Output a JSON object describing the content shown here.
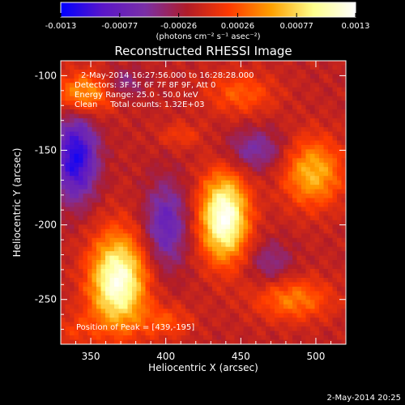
{
  "chart_data": {
    "type": "heatmap",
    "title": "Reconstructed RHESSI Image",
    "xlabel": "Heliocentric X (arcsec)",
    "ylabel": "Heliocentric Y (arcsec)",
    "xlim": [
      330,
      520
    ],
    "ylim": [
      -280,
      -90
    ],
    "x_ticks": [
      350,
      400,
      450,
      500
    ],
    "y_ticks": [
      -100,
      -150,
      -200,
      -250
    ],
    "colorbar": {
      "min": -0.0013,
      "max": 0.0013,
      "ticks": [
        "-0.0013",
        "-0.00077",
        "-0.00026",
        "0.00026",
        "0.00077",
        "0.0013"
      ],
      "unit_label": "(photons cm⁻² s⁻¹ asec⁻²)",
      "colormap": [
        "#0000ff",
        "#5a16c8",
        "#7a2fa6",
        "#b01c28",
        "#ff3a00",
        "#ffa000",
        "#ffff8c",
        "#ffffff"
      ]
    },
    "annotations": [
      "2-May-2014 16:27:56.000 to 16:28:28.000",
      "Detectors: 3F 5F 6F 7F 8F 9F, Att 0",
      "Energy Range: 25.0 - 50.0 keV",
      "Clean     Total counts: 1.32E+03",
      "Position of Peak = [439,-195]"
    ],
    "peak": [
      439,
      -195
    ],
    "sources": [
      {
        "x": 368,
        "y": -238,
        "sx": 13,
        "sy": 22,
        "amp": 1.15
      },
      {
        "x": 439,
        "y": -195,
        "sx": 11,
        "sy": 20,
        "amp": 1.2
      },
      {
        "x": 345,
        "y": -112,
        "sx": 13,
        "sy": 10,
        "amp": 0.6
      },
      {
        "x": 498,
        "y": -165,
        "sx": 14,
        "sy": 16,
        "amp": 0.65
      },
      {
        "x": 485,
        "y": -250,
        "sx": 18,
        "sy": 10,
        "amp": 0.45
      },
      {
        "x": 450,
        "y": -112,
        "sx": 16,
        "sy": 10,
        "amp": 0.35
      },
      {
        "x": 410,
        "y": -140,
        "sx": 10,
        "sy": 6,
        "amp": 0.22
      },
      {
        "x": 400,
        "y": -265,
        "sx": 12,
        "sy": 8,
        "amp": 0.3
      },
      {
        "x": 340,
        "y": -270,
        "sx": 10,
        "sy": 8,
        "amp": 0.2
      }
    ],
    "negatives": [
      {
        "x": 340,
        "y": -155,
        "sx": 10,
        "sy": 20,
        "amp": 0.9
      },
      {
        "x": 400,
        "y": -200,
        "sx": 10,
        "sy": 20,
        "amp": 0.55
      },
      {
        "x": 460,
        "y": -150,
        "sx": 14,
        "sy": 10,
        "amp": 0.4
      },
      {
        "x": 470,
        "y": -225,
        "sx": 10,
        "sy": 10,
        "amp": 0.3
      },
      {
        "x": 372,
        "y": -105,
        "sx": 9,
        "sy": 7,
        "amp": 0.3
      }
    ]
  },
  "footer": {
    "timestamp": "2-May-2014 20:25"
  }
}
